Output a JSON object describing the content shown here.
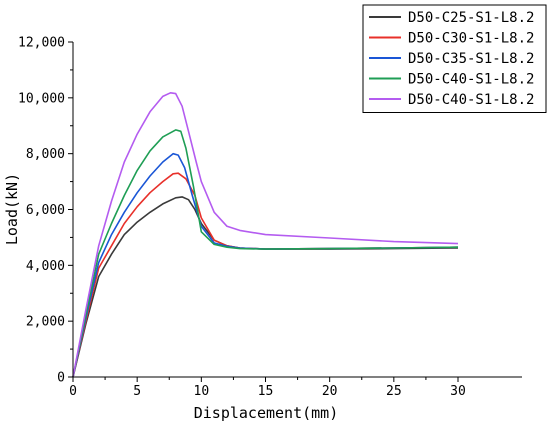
{
  "chart_data": {
    "type": "line",
    "title": "",
    "xlabel": "Displacement(mm)",
    "ylabel": "Load(kN)",
    "xlim": [
      0,
      30
    ],
    "ylim": [
      0,
      12000
    ],
    "x_ticks": [
      0,
      5,
      10,
      15,
      20,
      25,
      30
    ],
    "x_tick_labels": [
      "0",
      "5",
      "10",
      "15",
      "20",
      "25",
      "30"
    ],
    "y_ticks": [
      0,
      2000,
      4000,
      6000,
      8000,
      10000,
      12000
    ],
    "y_tick_labels": [
      "0",
      "2,000",
      "4,000",
      "6,000",
      "8,000",
      "10,000",
      "12,000"
    ],
    "grid": false,
    "legend_position": "top-right",
    "series": [
      {
        "name": "D50-C25-S1-L8.2",
        "color": "#3a3a3a",
        "points": [
          [
            0,
            0
          ],
          [
            1,
            1900
          ],
          [
            2,
            3600
          ],
          [
            3,
            4400
          ],
          [
            4,
            5100
          ],
          [
            5,
            5550
          ],
          [
            6,
            5900
          ],
          [
            7,
            6200
          ],
          [
            8,
            6420
          ],
          [
            8.5,
            6450
          ],
          [
            9,
            6350
          ],
          [
            9.5,
            6000
          ],
          [
            10,
            5500
          ],
          [
            11,
            4900
          ],
          [
            12,
            4700
          ],
          [
            13,
            4620
          ],
          [
            15,
            4580
          ],
          [
            20,
            4580
          ],
          [
            25,
            4600
          ],
          [
            30,
            4620
          ]
        ]
      },
      {
        "name": "D50-C30-S1-L8.2",
        "color": "#e8302a",
        "points": [
          [
            0,
            0
          ],
          [
            1,
            2000
          ],
          [
            2,
            3900
          ],
          [
            3,
            4700
          ],
          [
            4,
            5500
          ],
          [
            5,
            6100
          ],
          [
            6,
            6600
          ],
          [
            7,
            7000
          ],
          [
            7.8,
            7280
          ],
          [
            8.2,
            7300
          ],
          [
            8.8,
            7100
          ],
          [
            9.5,
            6500
          ],
          [
            10,
            5700
          ],
          [
            11,
            4900
          ],
          [
            12,
            4700
          ],
          [
            13,
            4620
          ],
          [
            15,
            4580
          ],
          [
            20,
            4600
          ],
          [
            25,
            4620
          ],
          [
            30,
            4650
          ]
        ]
      },
      {
        "name": "D50-C35-S1-L8.2",
        "color": "#1a56d6",
        "points": [
          [
            0,
            0
          ],
          [
            1,
            2100
          ],
          [
            2,
            4100
          ],
          [
            3,
            5100
          ],
          [
            4,
            5900
          ],
          [
            5,
            6600
          ],
          [
            6,
            7200
          ],
          [
            7,
            7700
          ],
          [
            7.8,
            8000
          ],
          [
            8.2,
            7950
          ],
          [
            8.7,
            7500
          ],
          [
            9.3,
            6500
          ],
          [
            10,
            5400
          ],
          [
            11,
            4800
          ],
          [
            12,
            4680
          ],
          [
            13,
            4620
          ],
          [
            15,
            4580
          ],
          [
            20,
            4600
          ],
          [
            25,
            4620
          ],
          [
            30,
            4650
          ]
        ]
      },
      {
        "name": "D50-C40-S1-L8.2",
        "color": "#1f9e55",
        "points": [
          [
            0,
            0
          ],
          [
            1,
            2200
          ],
          [
            2,
            4400
          ],
          [
            3,
            5500
          ],
          [
            4,
            6500
          ],
          [
            5,
            7400
          ],
          [
            6,
            8100
          ],
          [
            7,
            8600
          ],
          [
            8,
            8850
          ],
          [
            8.4,
            8800
          ],
          [
            8.8,
            8200
          ],
          [
            9.4,
            6800
          ],
          [
            10,
            5200
          ],
          [
            11,
            4750
          ],
          [
            12,
            4650
          ],
          [
            13,
            4600
          ],
          [
            15,
            4580
          ],
          [
            20,
            4600
          ],
          [
            25,
            4620
          ],
          [
            30,
            4650
          ]
        ]
      },
      {
        "name": "D50-C40-S1-L8.2",
        "color": "#b45cf0",
        "points": [
          [
            0,
            0
          ],
          [
            1,
            2400
          ],
          [
            2,
            4700
          ],
          [
            3,
            6300
          ],
          [
            4,
            7700
          ],
          [
            5,
            8700
          ],
          [
            6,
            9500
          ],
          [
            7,
            10050
          ],
          [
            7.6,
            10180
          ],
          [
            8,
            10150
          ],
          [
            8.5,
            9700
          ],
          [
            9,
            8800
          ],
          [
            9.6,
            7700
          ],
          [
            10,
            7000
          ],
          [
            11,
            5900
          ],
          [
            12,
            5400
          ],
          [
            13,
            5250
          ],
          [
            15,
            5100
          ],
          [
            20,
            4980
          ],
          [
            25,
            4850
          ],
          [
            30,
            4780
          ]
        ]
      }
    ]
  }
}
